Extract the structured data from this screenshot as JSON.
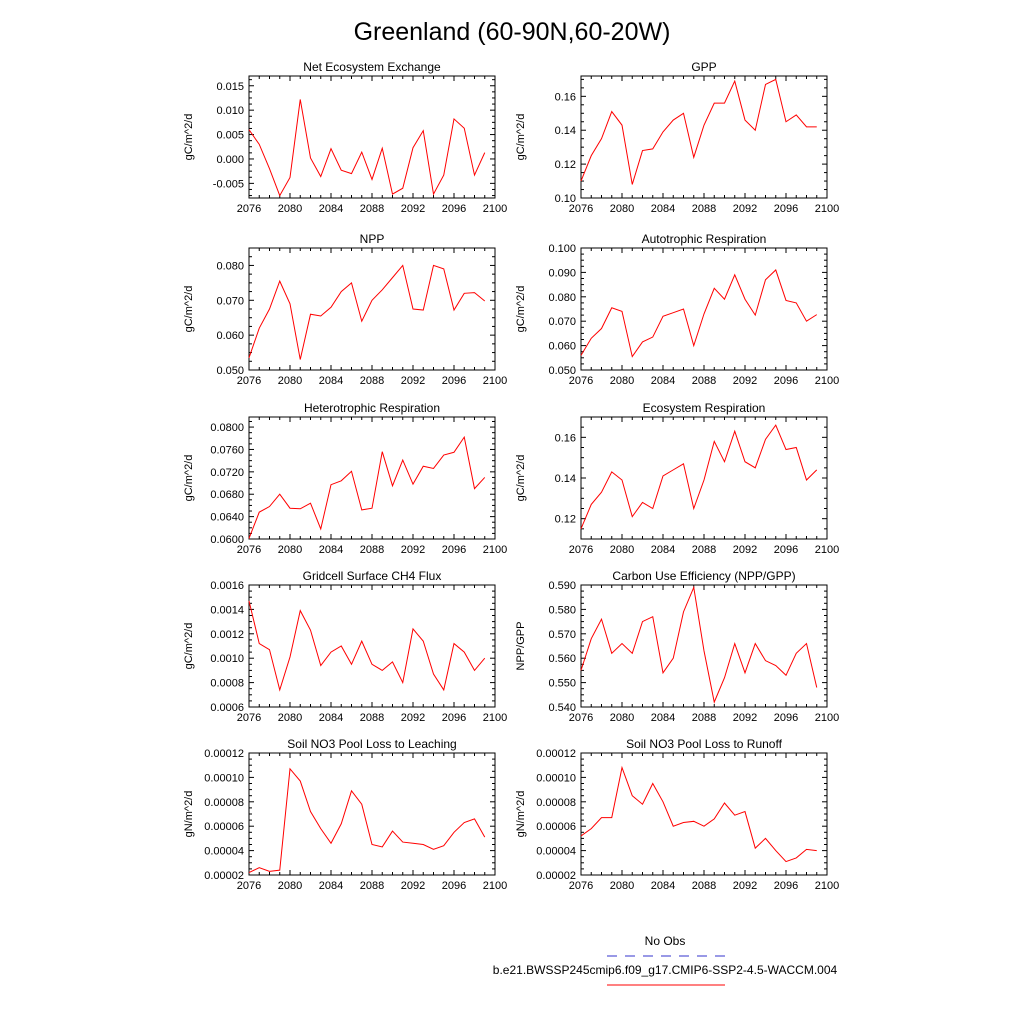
{
  "figure": {
    "title": "Greenland (60-90N,60-20W)",
    "line_color": "#ff0000",
    "obs_line_color": "#3333cc"
  },
  "legend": {
    "obs_label": "No Obs",
    "model_label": "b.e21.BWSSP245cmip6.f09_g17.CMIP6-SSP2-4.5-WACCM.004"
  },
  "chart_data": [
    {
      "type": "line",
      "title": "Net Ecosystem Exchange",
      "ylabel": "gC/m^2/d",
      "xlim": [
        2076,
        2100
      ],
      "ylim": [
        -0.008,
        0.017
      ],
      "xticks": [
        2076,
        2080,
        2084,
        2088,
        2092,
        2096,
        2100
      ],
      "yticks": [
        -0.005,
        0.0,
        0.005,
        0.01,
        0.015
      ],
      "ytick_labels": [
        "-0.005",
        "0.000",
        "0.005",
        "0.010",
        "0.015"
      ],
      "x": [
        2076,
        2077,
        2078,
        2079,
        2080,
        2081,
        2082,
        2083,
        2084,
        2085,
        2086,
        2087,
        2088,
        2089,
        2090,
        2091,
        2092,
        2093,
        2094,
        2095,
        2096,
        2097,
        2098,
        2099
      ],
      "values": [
        0.006,
        0.003,
        -0.002,
        -0.0075,
        -0.0038,
        0.0122,
        0.0002,
        -0.0036,
        0.0021,
        -0.0023,
        -0.003,
        0.0014,
        -0.0042,
        0.0022,
        -0.0072,
        -0.006,
        0.0023,
        0.0058,
        -0.0072,
        -0.0033,
        0.0082,
        0.0063,
        -0.0033,
        0.0013
      ]
    },
    {
      "type": "line",
      "title": "GPP",
      "ylabel": "gC/m^2/d",
      "xlim": [
        2076,
        2100
      ],
      "ylim": [
        0.1,
        0.172
      ],
      "xticks": [
        2076,
        2080,
        2084,
        2088,
        2092,
        2096,
        2100
      ],
      "yticks": [
        0.1,
        0.12,
        0.14,
        0.16
      ],
      "ytick_labels": [
        "0.10",
        "0.12",
        "0.14",
        "0.16"
      ],
      "x": [
        2076,
        2077,
        2078,
        2079,
        2080,
        2081,
        2082,
        2083,
        2084,
        2085,
        2086,
        2087,
        2088,
        2089,
        2090,
        2091,
        2092,
        2093,
        2094,
        2095,
        2096,
        2097,
        2098,
        2099
      ],
      "values": [
        0.11,
        0.125,
        0.135,
        0.151,
        0.143,
        0.108,
        0.128,
        0.129,
        0.139,
        0.146,
        0.15,
        0.124,
        0.143,
        0.156,
        0.156,
        0.169,
        0.146,
        0.14,
        0.167,
        0.17,
        0.145,
        0.149,
        0.142,
        0.142
      ]
    },
    {
      "type": "line",
      "title": "NPP",
      "ylabel": "gC/m^2/d",
      "xlim": [
        2076,
        2100
      ],
      "ylim": [
        0.05,
        0.085
      ],
      "xticks": [
        2076,
        2080,
        2084,
        2088,
        2092,
        2096,
        2100
      ],
      "yticks": [
        0.05,
        0.06,
        0.07,
        0.08
      ],
      "ytick_labels": [
        "0.050",
        "0.060",
        "0.070",
        "0.080"
      ],
      "x": [
        2076,
        2077,
        2078,
        2079,
        2080,
        2081,
        2082,
        2083,
        2084,
        2085,
        2086,
        2087,
        2088,
        2089,
        2090,
        2091,
        2092,
        2093,
        2094,
        2095,
        2096,
        2097,
        2098,
        2099
      ],
      "values": [
        0.0535,
        0.062,
        0.0675,
        0.0755,
        0.069,
        0.053,
        0.066,
        0.0655,
        0.068,
        0.0725,
        0.075,
        0.064,
        0.07,
        0.073,
        0.0765,
        0.08,
        0.0675,
        0.0672,
        0.08,
        0.079,
        0.0672,
        0.072,
        0.0722,
        0.0698
      ]
    },
    {
      "type": "line",
      "title": "Autotrophic Respiration",
      "ylabel": "gC/m^2/d",
      "xlim": [
        2076,
        2100
      ],
      "ylim": [
        0.05,
        0.1
      ],
      "xticks": [
        2076,
        2080,
        2084,
        2088,
        2092,
        2096,
        2100
      ],
      "yticks": [
        0.05,
        0.06,
        0.07,
        0.08,
        0.09,
        0.1
      ],
      "ytick_labels": [
        "0.050",
        "0.060",
        "0.070",
        "0.080",
        "0.090",
        "0.100"
      ],
      "x": [
        2076,
        2077,
        2078,
        2079,
        2080,
        2081,
        2082,
        2083,
        2084,
        2085,
        2086,
        2087,
        2088,
        2089,
        2090,
        2091,
        2092,
        2093,
        2094,
        2095,
        2096,
        2097,
        2098,
        2099
      ],
      "values": [
        0.056,
        0.063,
        0.067,
        0.0755,
        0.074,
        0.0555,
        0.0615,
        0.0635,
        0.072,
        0.0735,
        0.075,
        0.06,
        0.073,
        0.0835,
        0.079,
        0.089,
        0.079,
        0.0725,
        0.087,
        0.091,
        0.0785,
        0.0775,
        0.07,
        0.0727
      ]
    },
    {
      "type": "line",
      "title": "Heterotrophic Respiration",
      "ylabel": "gC/m^2/d",
      "xlim": [
        2076,
        2100
      ],
      "ylim": [
        0.06,
        0.0818
      ],
      "xticks": [
        2076,
        2080,
        2084,
        2088,
        2092,
        2096,
        2100
      ],
      "yticks": [
        0.06,
        0.064,
        0.068,
        0.072,
        0.076,
        0.08
      ],
      "ytick_labels": [
        "0.0600",
        "0.0640",
        "0.0680",
        "0.0720",
        "0.0760",
        "0.0800"
      ],
      "x": [
        2076,
        2077,
        2078,
        2079,
        2080,
        2081,
        2082,
        2083,
        2084,
        2085,
        2086,
        2087,
        2088,
        2089,
        2090,
        2091,
        2092,
        2093,
        2094,
        2095,
        2096,
        2097,
        2098,
        2099
      ],
      "values": [
        0.0601,
        0.0648,
        0.0658,
        0.068,
        0.0655,
        0.0654,
        0.0664,
        0.0618,
        0.0697,
        0.0704,
        0.0721,
        0.0652,
        0.0655,
        0.0756,
        0.0695,
        0.0741,
        0.0698,
        0.073,
        0.0726,
        0.075,
        0.0755,
        0.0782,
        0.069,
        0.071
      ]
    },
    {
      "type": "line",
      "title": "Ecosystem Respiration",
      "ylabel": "gC/m^2/d",
      "xlim": [
        2076,
        2100
      ],
      "ylim": [
        0.11,
        0.17
      ],
      "xticks": [
        2076,
        2080,
        2084,
        2088,
        2092,
        2096,
        2100
      ],
      "yticks": [
        0.12,
        0.14,
        0.16
      ],
      "ytick_labels": [
        "0.12",
        "0.14",
        "0.16"
      ],
      "x": [
        2076,
        2077,
        2078,
        2079,
        2080,
        2081,
        2082,
        2083,
        2084,
        2085,
        2086,
        2087,
        2088,
        2089,
        2090,
        2091,
        2092,
        2093,
        2094,
        2095,
        2096,
        2097,
        2098,
        2099
      ],
      "values": [
        0.115,
        0.127,
        0.133,
        0.143,
        0.139,
        0.121,
        0.128,
        0.125,
        0.141,
        0.144,
        0.147,
        0.125,
        0.139,
        0.158,
        0.148,
        0.163,
        0.148,
        0.145,
        0.159,
        0.166,
        0.154,
        0.155,
        0.139,
        0.144
      ]
    },
    {
      "type": "line",
      "title": "Gridcell Surface CH4 Flux",
      "ylabel": "gC/m^2/d",
      "xlim": [
        2076,
        2100
      ],
      "ylim": [
        0.0006,
        0.0016
      ],
      "xticks": [
        2076,
        2080,
        2084,
        2088,
        2092,
        2096,
        2100
      ],
      "yticks": [
        0.0006,
        0.0008,
        0.001,
        0.0012,
        0.0014,
        0.0016
      ],
      "ytick_labels": [
        "0.0006",
        "0.0008",
        "0.0010",
        "0.0012",
        "0.0014",
        "0.0016"
      ],
      "x": [
        2076,
        2077,
        2078,
        2079,
        2080,
        2081,
        2082,
        2083,
        2084,
        2085,
        2086,
        2087,
        2088,
        2089,
        2090,
        2091,
        2092,
        2093,
        2094,
        2095,
        2096,
        2097,
        2098,
        2099
      ],
      "values": [
        0.00147,
        0.00112,
        0.00107,
        0.00074,
        0.00101,
        0.00139,
        0.00123,
        0.00094,
        0.00105,
        0.0011,
        0.00095,
        0.00114,
        0.00095,
        0.0009,
        0.00097,
        0.0008,
        0.00124,
        0.00114,
        0.00087,
        0.00074,
        0.00112,
        0.00105,
        0.0009,
        0.001
      ]
    },
    {
      "type": "line",
      "title": "Carbon Use Efficiency (NPP/GPP)",
      "ylabel": "NPP/GPP",
      "xlim": [
        2076,
        2100
      ],
      "ylim": [
        0.54,
        0.59
      ],
      "xticks": [
        2076,
        2080,
        2084,
        2088,
        2092,
        2096,
        2100
      ],
      "yticks": [
        0.54,
        0.55,
        0.56,
        0.57,
        0.58,
        0.59
      ],
      "ytick_labels": [
        "0.540",
        "0.550",
        "0.560",
        "0.570",
        "0.580",
        "0.590"
      ],
      "x": [
        2076,
        2077,
        2078,
        2079,
        2080,
        2081,
        2082,
        2083,
        2084,
        2085,
        2086,
        2087,
        2088,
        2089,
        2090,
        2091,
        2092,
        2093,
        2094,
        2095,
        2096,
        2097,
        2098,
        2099
      ],
      "values": [
        0.555,
        0.568,
        0.576,
        0.562,
        0.566,
        0.562,
        0.575,
        0.577,
        0.554,
        0.56,
        0.579,
        0.589,
        0.563,
        0.542,
        0.552,
        0.566,
        0.554,
        0.566,
        0.559,
        0.557,
        0.553,
        0.562,
        0.566,
        0.548
      ]
    },
    {
      "type": "line",
      "title": "Soil NO3 Pool Loss to Leaching",
      "ylabel": "gN/m^2/d",
      "xlim": [
        2076,
        2100
      ],
      "ylim": [
        2e-05,
        0.00012
      ],
      "xticks": [
        2076,
        2080,
        2084,
        2088,
        2092,
        2096,
        2100
      ],
      "yticks": [
        2e-05,
        4e-05,
        6e-05,
        8e-05,
        0.0001,
        0.00012
      ],
      "ytick_labels": [
        "0.00002",
        "0.00004",
        "0.00006",
        "0.00008",
        "0.00010",
        "0.00012"
      ],
      "x": [
        2076,
        2077,
        2078,
        2079,
        2080,
        2081,
        2082,
        2083,
        2084,
        2085,
        2086,
        2087,
        2088,
        2089,
        2090,
        2091,
        2092,
        2093,
        2094,
        2095,
        2096,
        2097,
        2098,
        2099
      ],
      "values": [
        2.2e-05,
        2.6e-05,
        2.3e-05,
        2.4e-05,
        0.000107,
        9.7e-05,
        7.2e-05,
        5.8e-05,
        4.6e-05,
        6.2e-05,
        8.9e-05,
        7.8e-05,
        4.5e-05,
        4.3e-05,
        5.6e-05,
        4.7e-05,
        4.6e-05,
        4.5e-05,
        4.1e-05,
        4.4e-05,
        5.5e-05,
        6.3e-05,
        6.6e-05,
        5.1e-05
      ]
    },
    {
      "type": "line",
      "title": "Soil NO3 Pool Loss to Runoff",
      "ylabel": "gN/m^2/d",
      "xlim": [
        2076,
        2100
      ],
      "ylim": [
        2e-05,
        0.00012
      ],
      "xticks": [
        2076,
        2080,
        2084,
        2088,
        2092,
        2096,
        2100
      ],
      "yticks": [
        2e-05,
        4e-05,
        6e-05,
        8e-05,
        0.0001,
        0.00012
      ],
      "ytick_labels": [
        "0.00002",
        "0.00004",
        "0.00006",
        "0.00008",
        "0.00010",
        "0.00012"
      ],
      "x": [
        2076,
        2077,
        2078,
        2079,
        2080,
        2081,
        2082,
        2083,
        2084,
        2085,
        2086,
        2087,
        2088,
        2089,
        2090,
        2091,
        2092,
        2093,
        2094,
        2095,
        2096,
        2097,
        2098,
        2099
      ],
      "values": [
        5.2e-05,
        5.8e-05,
        6.7e-05,
        6.7e-05,
        0.000108,
        8.5e-05,
        7.8e-05,
        9.5e-05,
        8e-05,
        6e-05,
        6.3e-05,
        6.4e-05,
        6e-05,
        6.6e-05,
        7.9e-05,
        6.9e-05,
        7.2e-05,
        4.2e-05,
        5e-05,
        4e-05,
        3.1e-05,
        3.4e-05,
        4.1e-05,
        4e-05
      ]
    }
  ]
}
